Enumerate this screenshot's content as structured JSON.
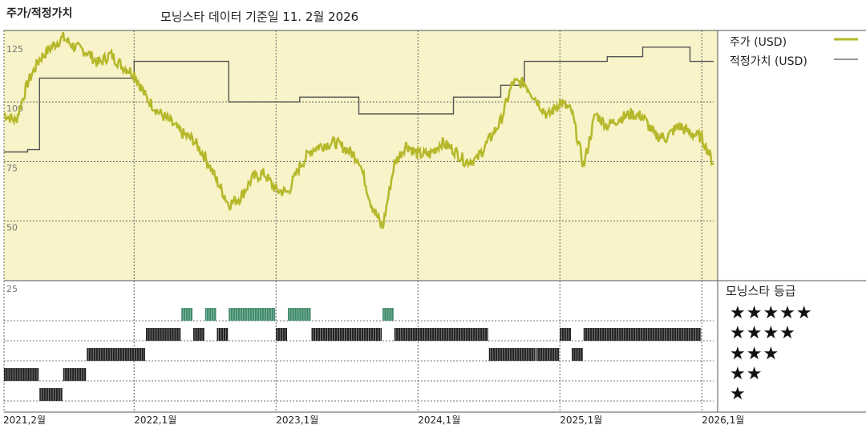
{
  "title": "주가/적정가치",
  "subtitle": "모닝스타 데이터 기준일 11. 2월 2026",
  "legend": {
    "price_label": "주가 (USD)",
    "fair_label": "적정가치 (USD)"
  },
  "rating_panel": {
    "title": "모닝스타 등급",
    "stars": [
      "★★★★★",
      "★★★★",
      "★★★",
      "★★",
      "★"
    ]
  },
  "colors": {
    "price": "#b5b82a",
    "fair": "#555555",
    "panel_bg": "#f8f3c8",
    "five_star": "#3d8a6a",
    "bars": "#222222"
  },
  "chart_data": [
    {
      "type": "line",
      "ylim": [
        25,
        130
      ],
      "y_ticks": [
        125,
        100,
        75,
        50
      ],
      "x_ticks": [
        "2021,2월",
        "2022,1월",
        "2023,1월",
        "2024,1월",
        "2025,1월",
        "2026,1월"
      ],
      "x_tick_dates": [
        "2021-02",
        "2022-01",
        "2023-01",
        "2024-01",
        "2025-01",
        "2026-01"
      ],
      "series": [
        {
          "name": "주가 (USD)",
          "x": [
            "2021-02",
            "2021-03",
            "2021-04",
            "2021-05",
            "2021-06",
            "2021-07",
            "2021-08",
            "2021-09",
            "2021-10",
            "2021-11",
            "2021-12",
            "2022-01",
            "2022-02",
            "2022-03",
            "2022-04",
            "2022-05",
            "2022-06",
            "2022-07",
            "2022-08",
            "2022-09",
            "2022-10",
            "2022-11",
            "2022-12",
            "2023-01",
            "2023-02",
            "2023-03",
            "2023-04",
            "2023-05",
            "2023-06",
            "2023-07",
            "2023-08",
            "2023-09",
            "2023-10",
            "2023-11",
            "2023-12",
            "2024-01",
            "2024-02",
            "2024-03",
            "2024-04",
            "2024-05",
            "2024-06",
            "2024-07",
            "2024-08",
            "2024-09",
            "2024-10",
            "2024-11",
            "2024-12",
            "2025-01",
            "2025-02",
            "2025-03",
            "2025-04",
            "2025-05",
            "2025-06",
            "2025-07",
            "2025-08",
            "2025-09",
            "2025-10",
            "2025-11",
            "2025-12",
            "2026-01",
            "2026-02"
          ],
          "values": [
            95,
            92,
            108,
            118,
            123,
            127,
            123,
            121,
            116,
            120,
            115,
            112,
            102,
            96,
            92,
            87,
            84,
            77,
            67,
            57,
            60,
            68,
            70,
            63,
            62,
            73,
            80,
            82,
            83,
            80,
            76,
            58,
            47,
            74,
            82,
            78,
            78,
            83,
            80,
            75,
            76,
            84,
            92,
            108,
            108,
            101,
            94,
            100,
            96,
            73,
            95,
            90,
            93,
            95,
            94,
            86,
            85,
            90,
            87,
            85,
            74
          ]
        },
        {
          "name": "적정가치 (USD)",
          "x": [
            "2021-02",
            "2021-04",
            "2021-05",
            "2021-08",
            "2021-10",
            "2021-12",
            "2022-01",
            "2022-05",
            "2022-07",
            "2022-09",
            "2023-01",
            "2023-03",
            "2023-08",
            "2023-12",
            "2024-02",
            "2024-04",
            "2024-08",
            "2024-10",
            "2025-02",
            "2025-05",
            "2025-08",
            "2025-12",
            "2026-02"
          ],
          "values": [
            79,
            80,
            110,
            110,
            110,
            110,
            117,
            117,
            117,
            100,
            100,
            102,
            95,
            95,
            95,
            102,
            107,
            117,
            117,
            119,
            123,
            117,
            117
          ]
        }
      ]
    },
    {
      "type": "bar",
      "title": "모닝스타 등급",
      "categories": [
        "★",
        "★★",
        "★★★",
        "★★★★",
        "★★★★★"
      ],
      "series": [
        {
          "name": "모닝스타 등급",
          "periods": [
            {
              "start": "2021-02",
              "end": "2021-05",
              "stars": 2
            },
            {
              "start": "2021-05",
              "end": "2021-07",
              "stars": 1
            },
            {
              "start": "2021-07",
              "end": "2021-09",
              "stars": 2
            },
            {
              "start": "2021-09",
              "end": "2022-02",
              "stars": 3
            },
            {
              "start": "2022-02",
              "end": "2022-05",
              "stars": 4
            },
            {
              "start": "2022-05",
              "end": "2022-06",
              "stars": 5
            },
            {
              "start": "2022-06",
              "end": "2022-07",
              "stars": 4
            },
            {
              "start": "2022-07",
              "end": "2022-08",
              "stars": 5
            },
            {
              "start": "2022-08",
              "end": "2022-09",
              "stars": 4
            },
            {
              "start": "2022-09",
              "end": "2023-01",
              "stars": 5
            },
            {
              "start": "2023-01",
              "end": "2023-02",
              "stars": 4
            },
            {
              "start": "2023-02",
              "end": "2023-04",
              "stars": 5
            },
            {
              "start": "2023-04",
              "end": "2023-10",
              "stars": 4
            },
            {
              "start": "2023-10",
              "end": "2023-11",
              "stars": 5
            },
            {
              "start": "2023-11",
              "end": "2024-07",
              "stars": 4
            },
            {
              "start": "2024-07",
              "end": "2024-11",
              "stars": 3
            },
            {
              "start": "2024-11",
              "end": "2025-01",
              "stars": 3
            },
            {
              "start": "2025-01",
              "end": "2025-02",
              "stars": 4
            },
            {
              "start": "2025-02",
              "end": "2025-03",
              "stars": 3
            },
            {
              "start": "2025-03",
              "end": "2026-01",
              "stars": 4
            }
          ]
        }
      ]
    }
  ]
}
